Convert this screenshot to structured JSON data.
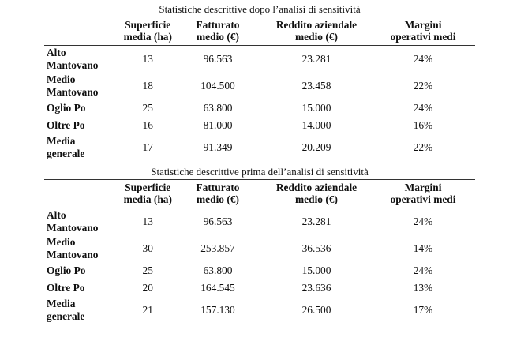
{
  "table_after": {
    "caption": "Statistiche descrittive dopo l’analisi di sensitività",
    "headers": [
      [
        "Superficie",
        "media (ha)"
      ],
      [
        "Fatturato",
        "medio (€)"
      ],
      [
        "Reddito aziendale",
        "medio (€)"
      ],
      [
        "Margini",
        "operativi medi"
      ]
    ],
    "rows": [
      {
        "region": [
          "Alto",
          "Mantovano"
        ],
        "values": [
          "13",
          "96.563",
          "23.281",
          "24%"
        ]
      },
      {
        "region": [
          "Medio",
          "Mantovano"
        ],
        "values": [
          "18",
          "104.500",
          "23.458",
          "22%"
        ]
      },
      {
        "region": [
          "Oglio Po",
          ""
        ],
        "values": [
          "25",
          "63.800",
          "15.000",
          "24%"
        ]
      },
      {
        "region": [
          "Oltre Po",
          ""
        ],
        "values": [
          "16",
          "81.000",
          "14.000",
          "16%"
        ]
      },
      {
        "region": [
          "Media",
          "generale"
        ],
        "values": [
          "17",
          "91.349",
          "20.209",
          "22%"
        ]
      }
    ]
  },
  "table_before": {
    "caption": "Statistiche descrittive prima dell’analisi di sensitività",
    "headers": [
      [
        "Superficie",
        "media (ha)"
      ],
      [
        "Fatturato",
        "medio (€)"
      ],
      [
        "Reddito aziendale",
        "medio (€)"
      ],
      [
        "Margini",
        "operativi medi"
      ]
    ],
    "rows": [
      {
        "region": [
          "Alto",
          "Mantovano"
        ],
        "values": [
          "13",
          "96.563",
          "23.281",
          "24%"
        ]
      },
      {
        "region": [
          "Medio",
          "Mantovano"
        ],
        "values": [
          "30",
          "253.857",
          "36.536",
          "14%"
        ]
      },
      {
        "region": [
          "Oglio Po",
          ""
        ],
        "values": [
          "25",
          "63.800",
          "15.000",
          "24%"
        ]
      },
      {
        "region": [
          "Oltre Po",
          ""
        ],
        "values": [
          "20",
          "164.545",
          "23.636",
          "13%"
        ]
      },
      {
        "region": [
          "Media",
          "generale"
        ],
        "values": [
          "21",
          "157.130",
          "26.500",
          "17%"
        ]
      }
    ]
  }
}
